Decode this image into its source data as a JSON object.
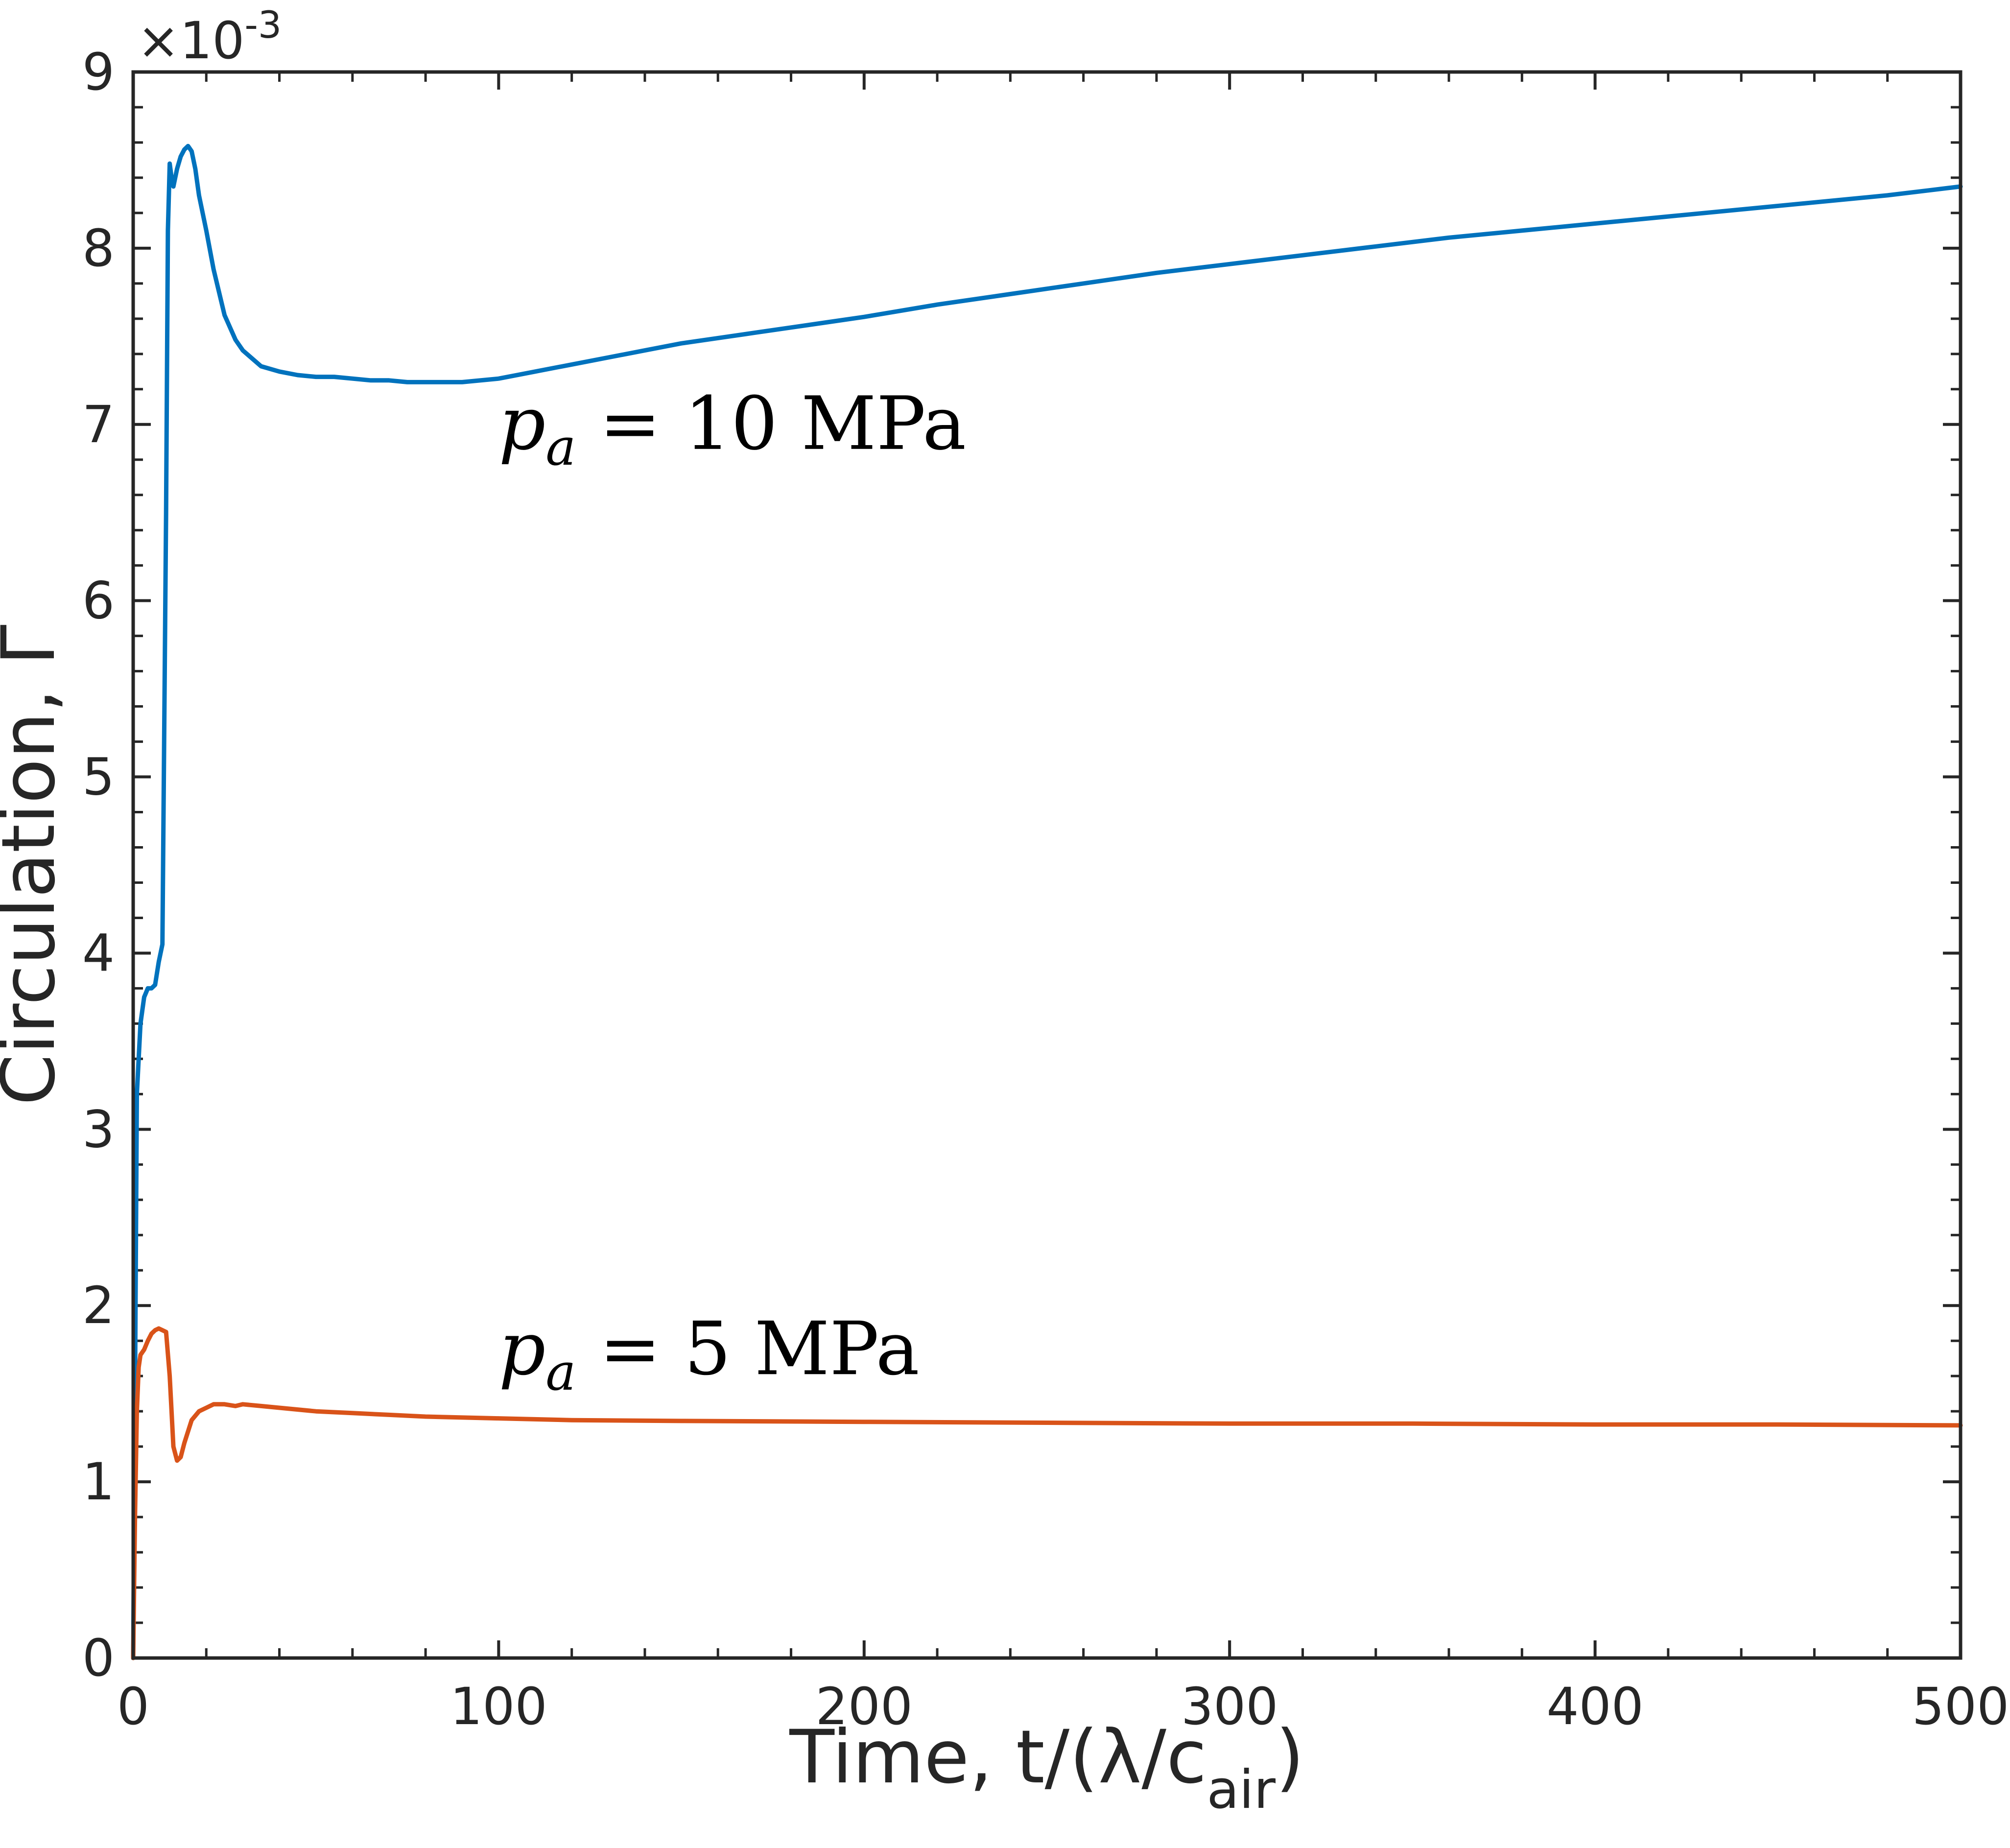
{
  "chart_data": {
    "type": "line",
    "xlabel": "Time, t/(λ/c",
    "xlabel_sub": "air",
    "xlabel_close": ")",
    "ylabel": "Circulation, Γ",
    "y_exponent_label": "×10",
    "y_exponent_power": "-3",
    "xlim": [
      0,
      500
    ],
    "ylim": [
      0,
      9
    ],
    "xticks": [
      0,
      100,
      200,
      300,
      400,
      500
    ],
    "yticks": [
      0,
      1,
      2,
      3,
      4,
      5,
      6,
      7,
      8,
      9
    ],
    "grid": false,
    "colors": {
      "series_1": "#0072BD",
      "series_2": "#D95319",
      "axes": "#262626"
    },
    "annotations": [
      {
        "text_main": "p",
        "text_sub": "a",
        "text_rest": " = 10 MPa",
        "x": 100,
        "y": 7.0
      },
      {
        "text_main": "p",
        "text_sub": "a",
        "text_rest": " = 5 MPa",
        "x": 100,
        "y": 1.75
      }
    ],
    "series": [
      {
        "x": [
          0,
          0.5,
          1,
          2,
          3,
          4,
          5,
          6,
          7,
          8,
          9,
          9.5,
          10,
          10.5,
          11,
          12,
          13,
          14,
          15,
          16,
          17,
          18,
          20,
          22,
          25,
          28,
          30,
          35,
          40,
          45,
          50,
          55,
          60,
          65,
          70,
          75,
          80,
          85,
          90,
          100,
          110,
          120,
          130,
          140,
          150,
          160,
          170,
          180,
          190,
          200,
          220,
          240,
          260,
          280,
          300,
          320,
          340,
          360,
          380,
          400,
          420,
          440,
          460,
          480,
          500
        ],
        "values": [
          0,
          1.5,
          3.2,
          3.6,
          3.75,
          3.8,
          3.8,
          3.82,
          3.95,
          4.05,
          6.5,
          8.1,
          8.48,
          8.4,
          8.35,
          8.45,
          8.52,
          8.56,
          8.58,
          8.55,
          8.45,
          8.3,
          8.1,
          7.88,
          7.62,
          7.48,
          7.42,
          7.33,
          7.3,
          7.28,
          7.27,
          7.27,
          7.26,
          7.25,
          7.25,
          7.24,
          7.24,
          7.24,
          7.24,
          7.26,
          7.3,
          7.34,
          7.38,
          7.42,
          7.46,
          7.49,
          7.52,
          7.55,
          7.58,
          7.61,
          7.68,
          7.74,
          7.8,
          7.86,
          7.91,
          7.96,
          8.01,
          8.06,
          8.1,
          8.14,
          8.18,
          8.22,
          8.26,
          8.3,
          8.35
        ]
      },
      {
        "x": [
          0,
          0.5,
          1,
          1.5,
          2,
          3,
          4,
          5,
          6,
          7,
          8,
          9,
          10,
          11,
          12,
          13,
          14,
          16,
          18,
          20,
          22,
          25,
          28,
          30,
          35,
          40,
          50,
          60,
          70,
          80,
          100,
          120,
          150,
          200,
          250,
          300,
          350,
          400,
          450,
          500
        ],
        "values": [
          0,
          0.8,
          1.4,
          1.65,
          1.72,
          1.75,
          1.8,
          1.84,
          1.86,
          1.87,
          1.86,
          1.85,
          1.6,
          1.2,
          1.12,
          1.14,
          1.22,
          1.35,
          1.4,
          1.42,
          1.44,
          1.44,
          1.43,
          1.44,
          1.43,
          1.42,
          1.4,
          1.39,
          1.38,
          1.37,
          1.36,
          1.35,
          1.345,
          1.34,
          1.335,
          1.33,
          1.33,
          1.325,
          1.325,
          1.32
        ]
      }
    ]
  }
}
